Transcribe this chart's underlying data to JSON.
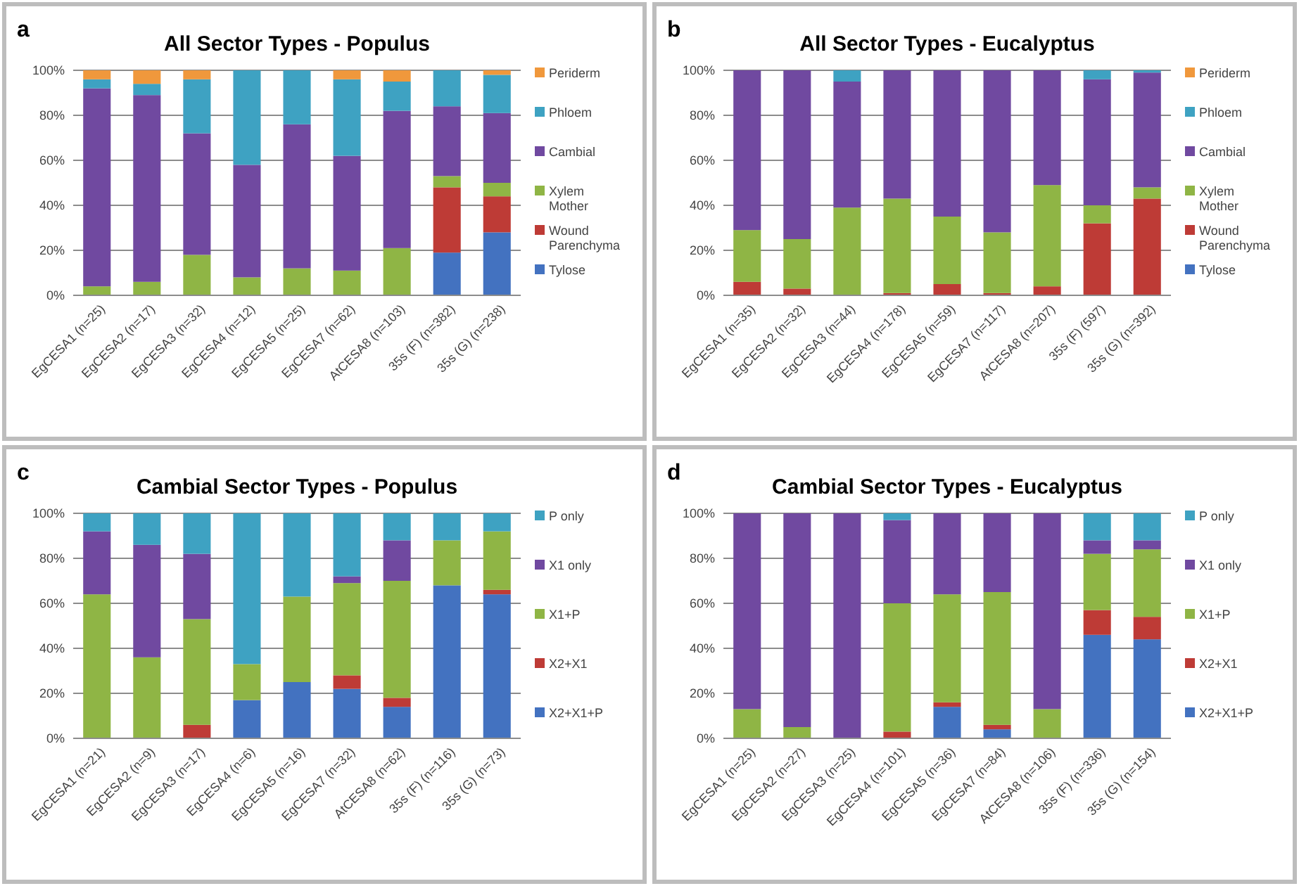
{
  "chart_data": [
    {
      "type": "bar",
      "title": "All Sector Types - Populus",
      "annotations": [
        "a"
      ],
      "stacked": true,
      "legend": "right",
      "grid": "y",
      "ylim": [
        0,
        100
      ],
      "yticks": [
        {
          "value": 0,
          "label": "0%"
        },
        {
          "value": 20,
          "label": "20%"
        },
        {
          "value": 40,
          "label": "40%"
        },
        {
          "value": 60,
          "label": "60%"
        },
        {
          "value": 80,
          "label": "80%"
        },
        {
          "value": 100,
          "label": "100%"
        }
      ],
      "categories": [
        "EgCESA1 (n=25)",
        "EgCESA2 (n=17)",
        "EgCESA3 (n=32)",
        "EgCESA4 (n=12)",
        "EgCESA5 (n=25)",
        "EgCESA7 (n=62)",
        "AtCESA8 (n=103)",
        "35s (F) (n=382)",
        "35s (G) (n=238)"
      ],
      "series": [
        {
          "name": "Tylose",
          "color": "#4372c0",
          "values": [
            0,
            0,
            0,
            0,
            0,
            0,
            0,
            19,
            28
          ]
        },
        {
          "name": "Wound Parenchyma",
          "color": "#be3b36",
          "values": [
            0,
            0,
            0,
            0,
            0,
            0,
            0,
            29,
            16
          ]
        },
        {
          "name": "Xylem Mother",
          "color": "#8fb545",
          "values": [
            4,
            6,
            18,
            8,
            12,
            11,
            21,
            5,
            6
          ]
        },
        {
          "name": "Cambial",
          "color": "#7049a0",
          "values": [
            88,
            83,
            54,
            50,
            64,
            51,
            61,
            31,
            31
          ]
        },
        {
          "name": "Phloem",
          "color": "#3ea2c2",
          "values": [
            4,
            5,
            24,
            42,
            24,
            34,
            13,
            16,
            17
          ]
        },
        {
          "name": "Periderm",
          "color": "#f0983c",
          "values": [
            4,
            6,
            4,
            0,
            0,
            4,
            5,
            0,
            2
          ]
        }
      ]
    },
    {
      "type": "bar",
      "title": "All Sector Types - Eucalyptus",
      "annotations": [
        "b"
      ],
      "stacked": true,
      "legend": "right",
      "grid": "y",
      "ylim": [
        0,
        100
      ],
      "yticks": [
        {
          "value": 0,
          "label": "0%"
        },
        {
          "value": 20,
          "label": "20%"
        },
        {
          "value": 40,
          "label": "40%"
        },
        {
          "value": 60,
          "label": "60%"
        },
        {
          "value": 80,
          "label": "80%"
        },
        {
          "value": 100,
          "label": "100%"
        }
      ],
      "categories": [
        "EgCESA1 (n=35)",
        "EgCESA2 (n=32)",
        "EgCESA3 (n=44)",
        "EgCESA4 (n=178)",
        "EgCESA5 (n=59)",
        "EgCESA7 (n=117)",
        "AtCESA8 (n=207)",
        "35s (F) (597)",
        "35s (G) (n=392)"
      ],
      "series": [
        {
          "name": "Tylose",
          "color": "#4372c0",
          "values": [
            0,
            0,
            0,
            0,
            0,
            0,
            0,
            0,
            0
          ]
        },
        {
          "name": "Wound Parenchyma",
          "color": "#be3b36",
          "values": [
            6,
            3,
            0,
            1,
            5,
            1,
            4,
            32,
            43
          ]
        },
        {
          "name": "Xylem Mother",
          "color": "#8fb545",
          "values": [
            23,
            22,
            39,
            42,
            30,
            27,
            45,
            8,
            5
          ]
        },
        {
          "name": "Cambial",
          "color": "#7049a0",
          "values": [
            71,
            75,
            56,
            57,
            65,
            72,
            51,
            56,
            51
          ]
        },
        {
          "name": "Phloem",
          "color": "#3ea2c2",
          "values": [
            0,
            0,
            5,
            0,
            0,
            0,
            0,
            4,
            1
          ]
        },
        {
          "name": "Periderm",
          "color": "#f0983c",
          "values": [
            0,
            0,
            0,
            0,
            0,
            0,
            0,
            0,
            0
          ]
        }
      ]
    },
    {
      "type": "bar",
      "title": "Cambial Sector Types - Populus",
      "annotations": [
        "c"
      ],
      "stacked": true,
      "legend": "right",
      "grid": "y",
      "ylim": [
        0,
        100
      ],
      "yticks": [
        {
          "value": 0,
          "label": "0%"
        },
        {
          "value": 20,
          "label": "20%"
        },
        {
          "value": 40,
          "label": "40%"
        },
        {
          "value": 60,
          "label": "60%"
        },
        {
          "value": 80,
          "label": "80%"
        },
        {
          "value": 100,
          "label": "100%"
        }
      ],
      "categories": [
        "EgCESA1 (n=21)",
        "EgCESA2 (n=9)",
        "EgCESA3 (n=17)",
        "EgCESA4 (n=6)",
        "EgCESA5 (n=16)",
        "EgCESA7 (n=32)",
        "AtCESA8 (n=62)",
        "35s (F) (n=116)",
        "35s (G) (n=73)"
      ],
      "series": [
        {
          "name": "X2+X1+P",
          "color": "#4372c0",
          "values": [
            0,
            0,
            0,
            17,
            25,
            22,
            14,
            68,
            64
          ]
        },
        {
          "name": "X2+X1",
          "color": "#be3b36",
          "values": [
            0,
            0,
            6,
            0,
            0,
            6,
            4,
            0,
            2
          ]
        },
        {
          "name": "X1+P",
          "color": "#8fb545",
          "values": [
            64,
            36,
            47,
            16,
            38,
            41,
            52,
            20,
            26
          ]
        },
        {
          "name": "X1 only",
          "color": "#7049a0",
          "values": [
            28,
            50,
            29,
            0,
            0,
            3,
            18,
            0,
            0
          ]
        },
        {
          "name": "P only",
          "color": "#3ea2c2",
          "values": [
            8,
            14,
            18,
            67,
            37,
            28,
            12,
            12,
            8
          ]
        }
      ]
    },
    {
      "type": "bar",
      "title": "Cambial Sector Types - Eucalyptus",
      "annotations": [
        "d"
      ],
      "stacked": true,
      "legend": "right",
      "grid": "y",
      "ylim": [
        0,
        100
      ],
      "yticks": [
        {
          "value": 0,
          "label": "0%"
        },
        {
          "value": 20,
          "label": "20%"
        },
        {
          "value": 40,
          "label": "40%"
        },
        {
          "value": 60,
          "label": "60%"
        },
        {
          "value": 80,
          "label": "80%"
        },
        {
          "value": 100,
          "label": "100%"
        }
      ],
      "categories": [
        "EgCESA1 (n=25)",
        "EgCESA2 (n=27)",
        "EgCESA3 (n=25)",
        "EgCESA4 (n=101)",
        "EgCESA5 (n=36)",
        "EgCESA7 (n=84)",
        "AtCESA8 (n=106)",
        "35s (F) (n=336)",
        "35s (G) (n=154)"
      ],
      "series": [
        {
          "name": "X2+X1+P",
          "color": "#4372c0",
          "values": [
            0,
            0,
            0,
            0,
            14,
            4,
            0,
            46,
            44
          ]
        },
        {
          "name": "X2+X1",
          "color": "#be3b36",
          "values": [
            0,
            0,
            0,
            3,
            2,
            2,
            0,
            11,
            10
          ]
        },
        {
          "name": "X1+P",
          "color": "#8fb545",
          "values": [
            13,
            5,
            0,
            57,
            48,
            59,
            13,
            25,
            30
          ]
        },
        {
          "name": "X1 only",
          "color": "#7049a0",
          "values": [
            87,
            95,
            100,
            37,
            36,
            35,
            87,
            6,
            4
          ]
        },
        {
          "name": "P only",
          "color": "#3ea2c2",
          "values": [
            0,
            0,
            0,
            3,
            0,
            0,
            0,
            12,
            12
          ]
        }
      ]
    }
  ]
}
